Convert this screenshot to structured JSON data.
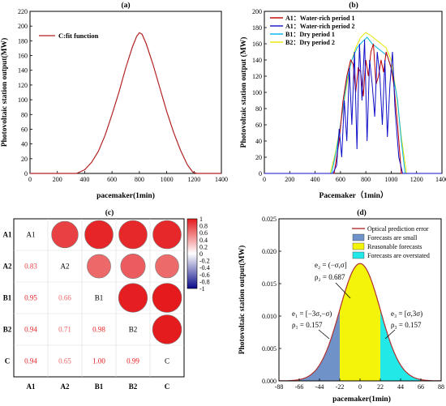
{
  "chart_data": [
    {
      "type": "line",
      "title": "(a)",
      "xlabel": "pacemaker(1min)",
      "ylabel": "Photovoltaic station output(MW)",
      "xlim": [
        0,
        1400
      ],
      "ylim": [
        0,
        220
      ],
      "xticks": [
        "0",
        "200",
        "400",
        "600",
        "800",
        "1000",
        "1200",
        "1400"
      ],
      "yticks": [
        "0",
        "20",
        "40",
        "60",
        "80",
        "100",
        "120",
        "140",
        "160",
        "180",
        "200",
        "220"
      ],
      "legend_position": "top-left",
      "series": [
        {
          "name": "C:fit function",
          "color": "#b22222",
          "x": [
            0,
            340,
            400,
            450,
            500,
            550,
            600,
            650,
            700,
            750,
            780,
            800,
            820,
            850,
            900,
            950,
            1000,
            1050,
            1100,
            1150,
            1190,
            1220,
            1400
          ],
          "y": [
            0,
            0,
            5,
            15,
            30,
            52,
            80,
            110,
            143,
            172,
            186,
            191,
            189,
            176,
            148,
            116,
            84,
            56,
            32,
            12,
            2,
            0,
            0
          ]
        }
      ]
    },
    {
      "type": "line",
      "title": "(b)",
      "xlabel": "Pacemaker（1min）",
      "ylabel": "Photovoltaic station output (MW)",
      "xlim": [
        0,
        1400
      ],
      "ylim": [
        0,
        200
      ],
      "xticks": [
        "0",
        "200",
        "400",
        "600",
        "800",
        "1000",
        "1200",
        "1400"
      ],
      "yticks": [
        "0",
        "20",
        "40",
        "60",
        "80",
        "100",
        "120",
        "140",
        "160",
        "180",
        "200"
      ],
      "legend_position": "top-left",
      "series": [
        {
          "name": "A1：Water-rich period 1",
          "color": "#c00000",
          "x": [
            0,
            550,
            590,
            620,
            650,
            680,
            700,
            720,
            740,
            760,
            780,
            800,
            820,
            840,
            860,
            880,
            900,
            920,
            940,
            960,
            980,
            1000,
            1020,
            1050,
            1080,
            1400
          ],
          "y": [
            0,
            0,
            40,
            90,
            120,
            140,
            135,
            100,
            130,
            125,
            95,
            140,
            120,
            150,
            160,
            110,
            120,
            140,
            125,
            150,
            140,
            130,
            110,
            60,
            0,
            0
          ]
        },
        {
          "name": "A1：Water-rich period 2",
          "color": "#1010c8",
          "x": [
            0,
            540,
            570,
            590,
            610,
            630,
            650,
            670,
            690,
            710,
            730,
            750,
            770,
            790,
            810,
            830,
            850,
            870,
            890,
            910,
            930,
            950,
            970,
            990,
            1010,
            1030,
            1060,
            1090,
            1400
          ],
          "y": [
            0,
            0,
            10,
            55,
            20,
            90,
            40,
            130,
            60,
            150,
            30,
            160,
            90,
            165,
            40,
            140,
            110,
            70,
            150,
            120,
            60,
            140,
            45,
            110,
            150,
            80,
            20,
            0,
            0
          ]
        },
        {
          "name": "B1：Dry period 1",
          "color": "#00b4e6",
          "x": [
            0,
            530,
            570,
            610,
            650,
            690,
            730,
            770,
            810,
            850,
            890,
            930,
            970,
            1010,
            1050,
            1080,
            1110,
            1400
          ],
          "y": [
            0,
            0,
            30,
            70,
            115,
            140,
            155,
            162,
            168,
            160,
            155,
            150,
            145,
            125,
            90,
            40,
            0,
            0
          ]
        },
        {
          "name": "B2：Dry period 2",
          "color": "#e6e600",
          "x": [
            0,
            520,
            560,
            600,
            640,
            680,
            720,
            760,
            800,
            840,
            880,
            920,
            960,
            1000,
            1040,
            1080,
            1120,
            1400
          ],
          "y": [
            0,
            0,
            25,
            60,
            100,
            135,
            155,
            168,
            174,
            170,
            165,
            160,
            155,
            140,
            100,
            45,
            0,
            0
          ]
        }
      ]
    },
    {
      "type": "heatmap",
      "title": "(c)",
      "labels": [
        "A1",
        "A2",
        "B1",
        "B2",
        "C"
      ],
      "matrix": [
        [
          1.0,
          0.83,
          0.95,
          0.94,
          0.94
        ],
        [
          0.83,
          1.0,
          0.66,
          0.71,
          0.65
        ],
        [
          0.95,
          0.66,
          1.0,
          0.98,
          1.0
        ],
        [
          0.94,
          0.71,
          0.98,
          1.0,
          0.99
        ],
        [
          0.94,
          0.65,
          1.0,
          0.99,
          1.0
        ]
      ],
      "lower_labels": [
        [
          "0.83"
        ],
        [
          "0.95",
          "0.66"
        ],
        [
          "0.94",
          "0.71",
          "0.98"
        ],
        [
          "0.94",
          "0.65",
          "1.00",
          "0.99"
        ]
      ],
      "colorbar_ticks": [
        "1",
        "0.8",
        "0.6",
        "0.4",
        "0.2",
        "0",
        "-0.2",
        "-0.4",
        "-0.6",
        "-0.8",
        "-1"
      ],
      "colors": {
        "positive": "#e41a1c",
        "negative": "#0a0a8a",
        "neutral": "#ffffff"
      }
    },
    {
      "type": "area",
      "title": "(d)",
      "xlabel": "pacemaker(1min)",
      "ylabel": "Photovoltaic station output(MW)",
      "xlim": [
        -88,
        88
      ],
      "ylim": [
        0,
        0.025
      ],
      "xticks": [
        "-88",
        "-66",
        "-44",
        "-22",
        "0",
        "22",
        "44",
        "66",
        "88"
      ],
      "yticks": [
        "0.000",
        "0.005",
        "0.010",
        "0.015",
        "0.020",
        "0.025"
      ],
      "sigma": 22,
      "peak": 0.0181,
      "legend_position": "top-right",
      "series": [
        {
          "name": "Optical prediction error",
          "color": "#b03030"
        },
        {
          "name": "Forecasts are small",
          "color": "#6f93c9"
        },
        {
          "name": "Reasonable forecasts",
          "color": "#f4f40a"
        },
        {
          "name": "Forecasts are overstated",
          "color": "#22e8e8"
        }
      ],
      "annotations": {
        "e1": "e₁ = [−3σ,−σ)",
        "rho1": "ρ₁ = 0.157",
        "e2": "e₂ = (−σ,σ]",
        "rho2": "ρ₂ = 0.687",
        "e3": "e₃ = [σ,3σ)",
        "rho3": "ρ₃ = 0.157"
      }
    }
  ]
}
